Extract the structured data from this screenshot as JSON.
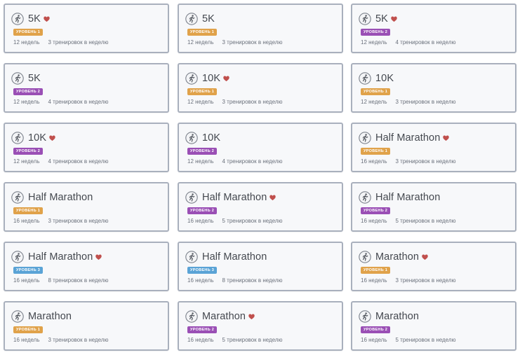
{
  "colors": {
    "level_1": "#e0a24a",
    "level_2": "#9a4fb5",
    "level_3": "#5aa3d6",
    "heart": "#c0504d"
  },
  "plans": [
    {
      "title": "5K",
      "favorite": true,
      "level": "УРОВЕНЬ 1",
      "level_num": 1,
      "weeks": "12 недель",
      "workouts": "3 тренировок в неделю"
    },
    {
      "title": "5K",
      "favorite": false,
      "level": "УРОВЕНЬ 1",
      "level_num": 1,
      "weeks": "12 недель",
      "workouts": "3 тренировок в неделю"
    },
    {
      "title": "5K",
      "favorite": true,
      "level": "УРОВЕНЬ 2",
      "level_num": 2,
      "weeks": "12 недель",
      "workouts": "4 тренировок в неделю"
    },
    {
      "title": "5K",
      "favorite": false,
      "level": "УРОВЕНЬ 2",
      "level_num": 2,
      "weeks": "12 недель",
      "workouts": "4 тренировок в неделю"
    },
    {
      "title": "10K",
      "favorite": true,
      "level": "УРОВЕНЬ 1",
      "level_num": 1,
      "weeks": "12 недель",
      "workouts": "3 тренировок в неделю"
    },
    {
      "title": "10K",
      "favorite": false,
      "level": "УРОВЕНЬ 1",
      "level_num": 1,
      "weeks": "12 недель",
      "workouts": "3 тренировок в неделю"
    },
    {
      "title": "10K",
      "favorite": true,
      "level": "УРОВЕНЬ 2",
      "level_num": 2,
      "weeks": "12 недель",
      "workouts": "4 тренировок в неделю"
    },
    {
      "title": "10K",
      "favorite": false,
      "level": "УРОВЕНЬ 2",
      "level_num": 2,
      "weeks": "12 недель",
      "workouts": "4 тренировок в неделю"
    },
    {
      "title": "Half Marathon",
      "favorite": true,
      "level": "УРОВЕНЬ 1",
      "level_num": 1,
      "weeks": "16 недель",
      "workouts": "3 тренировок в неделю"
    },
    {
      "title": "Half Marathon",
      "favorite": false,
      "level": "УРОВЕНЬ 1",
      "level_num": 1,
      "weeks": "16 недель",
      "workouts": "3 тренировок в неделю"
    },
    {
      "title": "Half Marathon",
      "favorite": true,
      "level": "УРОВЕНЬ 2",
      "level_num": 2,
      "weeks": "16 недель",
      "workouts": "5 тренировок в неделю"
    },
    {
      "title": "Half Marathon",
      "favorite": false,
      "level": "УРОВЕНЬ 2",
      "level_num": 2,
      "weeks": "16 недель",
      "workouts": "5 тренировок в неделю"
    },
    {
      "title": "Half Marathon",
      "favorite": true,
      "level": "УРОВЕНЬ 3",
      "level_num": 3,
      "weeks": "16 недель",
      "workouts": "8 тренировок в неделю"
    },
    {
      "title": "Half Marathon",
      "favorite": false,
      "level": "УРОВЕНЬ 3",
      "level_num": 3,
      "weeks": "16 недель",
      "workouts": "8 тренировок в неделю"
    },
    {
      "title": "Marathon",
      "favorite": true,
      "level": "УРОВЕНЬ 1",
      "level_num": 1,
      "weeks": "16 недель",
      "workouts": "3 тренировок в неделю"
    },
    {
      "title": "Marathon",
      "favorite": false,
      "level": "УРОВЕНЬ 1",
      "level_num": 1,
      "weeks": "16 недель",
      "workouts": "3 тренировок в неделю"
    },
    {
      "title": "Marathon",
      "favorite": true,
      "level": "УРОВЕНЬ 2",
      "level_num": 2,
      "weeks": "16 недель",
      "workouts": "5 тренировок в неделю"
    },
    {
      "title": "Marathon",
      "favorite": false,
      "level": "УРОВЕНЬ 2",
      "level_num": 2,
      "weeks": "16 недель",
      "workouts": "5 тренировок в неделю"
    }
  ]
}
